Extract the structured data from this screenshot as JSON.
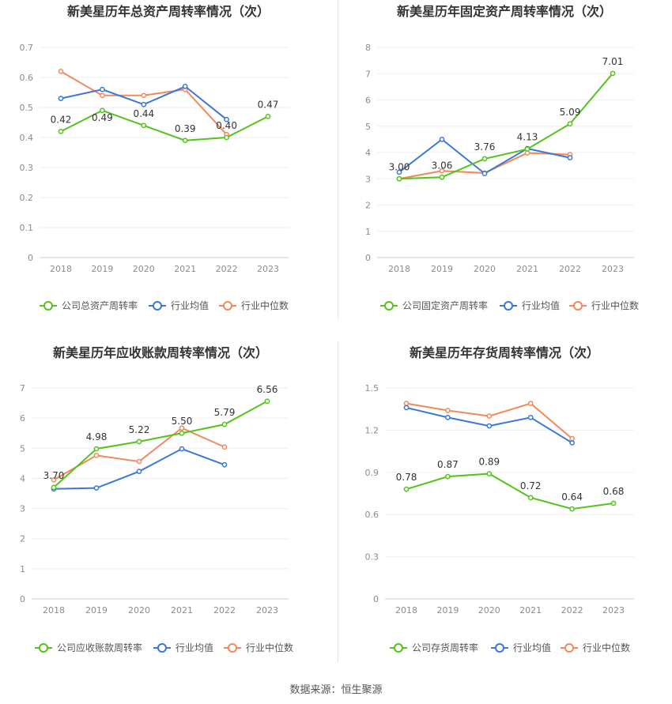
{
  "source": "数据来源：恒生聚源",
  "colors": {
    "company": "#52c41a",
    "industry_avg": "#3a77d8",
    "industry_median": "#f08a5d"
  },
  "chart_data": [
    {
      "type": "line",
      "title": "新美星历年总资产周转率情况（次）",
      "x": [
        "2018",
        "2019",
        "2020",
        "2021",
        "2022",
        "2023"
      ],
      "ylim": [
        0,
        0.7
      ],
      "yticks": [
        0,
        0.1,
        0.2,
        0.3,
        0.4,
        0.5,
        0.6,
        0.7
      ],
      "ytick_labels": [
        "0",
        "0.1",
        "0.2",
        "0.3",
        "0.4",
        "0.5",
        "0.6",
        "0.7"
      ],
      "series": [
        {
          "name": "公司总资产周转率",
          "values": [
            0.42,
            0.49,
            0.44,
            0.39,
            0.4,
            0.47
          ],
          "labels": [
            "0.42",
            "0.49",
            "0.44",
            "0.39",
            "0.40",
            "0.47"
          ]
        },
        {
          "name": "行业均值",
          "values": [
            0.53,
            0.56,
            0.51,
            0.57,
            0.46,
            null
          ]
        },
        {
          "name": "行业中位数",
          "values": [
            0.62,
            0.54,
            0.54,
            0.56,
            0.41,
            null
          ]
        }
      ],
      "legend": "bottom"
    },
    {
      "type": "line",
      "title": "新美星历年固定资产周转率情况（次）",
      "x": [
        "2018",
        "2019",
        "2020",
        "2021",
        "2022",
        "2023"
      ],
      "ylim": [
        0,
        8
      ],
      "yticks": [
        0,
        1,
        2,
        3,
        4,
        5,
        6,
        7,
        8
      ],
      "ytick_labels": [
        "0",
        "1",
        "2",
        "3",
        "4",
        "5",
        "6",
        "7",
        "8"
      ],
      "series": [
        {
          "name": "公司固定资产周转率",
          "values": [
            3.0,
            3.06,
            3.76,
            4.13,
            5.09,
            7.01
          ],
          "labels": [
            "3.00",
            "3.06",
            "3.76",
            "4.13",
            "5.09",
            "7.01"
          ]
        },
        {
          "name": "行业均值",
          "values": [
            3.25,
            4.5,
            3.2,
            4.15,
            3.8,
            null
          ]
        },
        {
          "name": "行业中位数",
          "values": [
            3.0,
            3.3,
            3.22,
            3.98,
            3.92,
            null
          ]
        }
      ],
      "legend": "bottom"
    },
    {
      "type": "line",
      "title": "新美星历年应收账款周转率情况（次）",
      "x": [
        "2018",
        "2019",
        "2020",
        "2021",
        "2022",
        "2023"
      ],
      "ylim": [
        0,
        7
      ],
      "yticks": [
        0,
        1,
        2,
        3,
        4,
        5,
        6,
        7
      ],
      "ytick_labels": [
        "0",
        "1",
        "2",
        "3",
        "4",
        "5",
        "6",
        "7"
      ],
      "series": [
        {
          "name": "公司应收账款周转率",
          "values": [
            3.7,
            4.98,
            5.22,
            5.5,
            5.79,
            6.56
          ],
          "labels": [
            "3.70",
            "4.98",
            "5.22",
            "5.50",
            "5.79",
            "6.56"
          ]
        },
        {
          "name": "行业均值",
          "values": [
            3.65,
            3.68,
            4.23,
            4.98,
            4.45,
            null
          ]
        },
        {
          "name": "行业中位数",
          "values": [
            3.95,
            4.76,
            4.56,
            5.67,
            5.04,
            null
          ]
        }
      ],
      "legend": "bottom"
    },
    {
      "type": "line",
      "title": "新美星历年存货周转率情况（次）",
      "x": [
        "2018",
        "2019",
        "2020",
        "2021",
        "2022",
        "2023"
      ],
      "ylim": [
        0,
        1.5
      ],
      "yticks": [
        0,
        0.3,
        0.6,
        0.9,
        1.2,
        1.5
      ],
      "ytick_labels": [
        "0",
        "0.3",
        "0.6",
        "0.9",
        "1.2",
        "1.5"
      ],
      "series": [
        {
          "name": "公司存货周转率",
          "values": [
            0.78,
            0.87,
            0.89,
            0.72,
            0.64,
            0.68
          ],
          "labels": [
            "0.78",
            "0.87",
            "0.89",
            "0.72",
            "0.64",
            "0.68"
          ]
        },
        {
          "name": "行业均值",
          "values": [
            1.36,
            1.29,
            1.23,
            1.29,
            1.11,
            null
          ]
        },
        {
          "name": "行业中位数",
          "values": [
            1.39,
            1.34,
            1.3,
            1.39,
            1.14,
            null
          ]
        }
      ],
      "legend": "bottom"
    }
  ]
}
